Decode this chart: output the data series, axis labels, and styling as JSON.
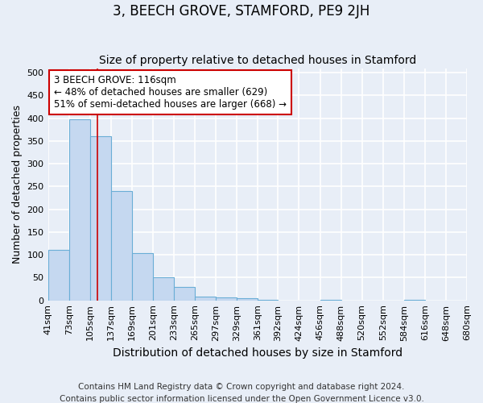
{
  "title": "3, BEECH GROVE, STAMFORD, PE9 2JH",
  "subtitle": "Size of property relative to detached houses in Stamford",
  "xlabel": "Distribution of detached houses by size in Stamford",
  "ylabel": "Number of detached properties",
  "bin_edges": [
    41,
    73,
    105,
    137,
    169,
    201,
    233,
    265,
    297,
    329,
    361,
    392,
    424,
    456,
    488,
    520,
    552,
    584,
    616,
    648,
    680
  ],
  "bar_heights": [
    111,
    397,
    360,
    241,
    104,
    50,
    30,
    8,
    7,
    5,
    2,
    0,
    0,
    2,
    0,
    0,
    0,
    2,
    0,
    0
  ],
  "bar_color": "#c5d8f0",
  "bar_edge_color": "#6aaed6",
  "property_size": 116,
  "property_line_color": "#cc0000",
  "annotation_line1": "3 BEECH GROVE: 116sqm",
  "annotation_line2": "← 48% of detached houses are smaller (629)",
  "annotation_line3": "51% of semi-detached houses are larger (668) →",
  "annotation_box_color": "white",
  "annotation_box_edge_color": "#cc0000",
  "ylim": [
    0,
    510
  ],
  "yticks": [
    0,
    50,
    100,
    150,
    200,
    250,
    300,
    350,
    400,
    450,
    500
  ],
  "bg_color": "#e8eef7",
  "grid_color": "white",
  "footnote_line1": "Contains HM Land Registry data © Crown copyright and database right 2024.",
  "footnote_line2": "Contains public sector information licensed under the Open Government Licence v3.0.",
  "title_fontsize": 12,
  "subtitle_fontsize": 10,
  "xlabel_fontsize": 10,
  "ylabel_fontsize": 9,
  "annotation_fontsize": 8.5,
  "tick_fontsize": 8,
  "footnote_fontsize": 7.5
}
